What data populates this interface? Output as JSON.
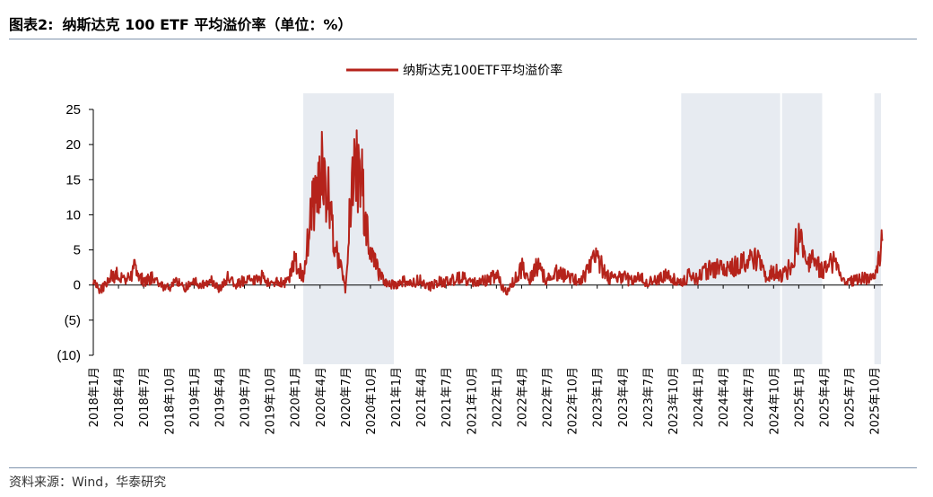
{
  "figure": {
    "label": "图表2:",
    "title": "纳斯达克 100 ETF 平均溢价率（单位：%）",
    "source": "资料来源：Wind，华泰研究"
  },
  "chart_data": {
    "type": "line",
    "title": "纳斯达克 100 ETF 平均溢价率（单位：%）",
    "xlabel": "",
    "ylabel": "",
    "ylim": [
      -10,
      25
    ],
    "xlim": [
      "2018-01",
      "2025-11"
    ],
    "y_ticks": [
      25,
      20,
      15,
      10,
      5,
      0,
      -5,
      -10
    ],
    "y_tick_labels": [
      "25",
      "20",
      "15",
      "10",
      "5",
      "0",
      "(5)",
      "(10)"
    ],
    "x_tick_labels": [
      "2018年1月",
      "2018年4月",
      "2018年7月",
      "2018年10月",
      "2019年1月",
      "2019年4月",
      "2019年7月",
      "2019年10月",
      "2020年1月",
      "2020年4月",
      "2020年7月",
      "2020年10月",
      "2021年1月",
      "2021年4月",
      "2021年7月",
      "2021年10月",
      "2022年1月",
      "2022年4月",
      "2022年7月",
      "2022年10月",
      "2023年1月",
      "2023年4月",
      "2023年7月",
      "2023年10月",
      "2024年1月",
      "2024年4月",
      "2024年7月",
      "2024年10月",
      "2025年1月",
      "2025年4月",
      "2025年7月",
      "2025年10月"
    ],
    "legend": {
      "position": "top",
      "entries": [
        "纳斯达克100ETF平均溢价率"
      ]
    },
    "grid": false,
    "shaded_periods": [
      [
        "2020-02",
        "2021-01"
      ],
      [
        "2023-11",
        "2024-11"
      ],
      [
        "2024-11",
        "2025-04"
      ],
      [
        "2025-10",
        "2025-11"
      ]
    ],
    "series": [
      {
        "name": "纳斯达克100ETF平均溢价率",
        "color": "#b5231b",
        "x": [
          "2018-01",
          "2018-02",
          "2018-03",
          "2018-04",
          "2018-05",
          "2018-06",
          "2018-07",
          "2018-08",
          "2018-09",
          "2018-10",
          "2018-11",
          "2018-12",
          "2019-01",
          "2019-02",
          "2019-03",
          "2019-04",
          "2019-05",
          "2019-06",
          "2019-07",
          "2019-08",
          "2019-09",
          "2019-10",
          "2019-11",
          "2019-12",
          "2020-01",
          "2020-02",
          "2020-03",
          "2020-04",
          "2020-05",
          "2020-06",
          "2020-07",
          "2020-08",
          "2020-09",
          "2020-10",
          "2020-11",
          "2020-12",
          "2021-01",
          "2021-02",
          "2021-03",
          "2021-04",
          "2021-05",
          "2021-06",
          "2021-07",
          "2021-08",
          "2021-09",
          "2021-10",
          "2021-11",
          "2021-12",
          "2022-01",
          "2022-02",
          "2022-03",
          "2022-04",
          "2022-05",
          "2022-06",
          "2022-07",
          "2022-08",
          "2022-09",
          "2022-10",
          "2022-11",
          "2022-12",
          "2023-01",
          "2023-02",
          "2023-03",
          "2023-04",
          "2023-05",
          "2023-06",
          "2023-07",
          "2023-08",
          "2023-09",
          "2023-10",
          "2023-11",
          "2023-12",
          "2024-01",
          "2024-02",
          "2024-03",
          "2024-04",
          "2024-05",
          "2024-06",
          "2024-07",
          "2024-08",
          "2024-09",
          "2024-10",
          "2024-11",
          "2024-12",
          "2025-01",
          "2025-02",
          "2025-03",
          "2025-04",
          "2025-05",
          "2025-06",
          "2025-07",
          "2025-08",
          "2025-09",
          "2025-10",
          "2025-11"
        ],
        "values": [
          0.5,
          -0.8,
          1.2,
          1.5,
          0.8,
          2.5,
          0.5,
          1.0,
          0.0,
          -0.5,
          0.8,
          -0.5,
          0.5,
          0.0,
          0.8,
          -0.5,
          1.0,
          0.0,
          0.8,
          0.5,
          1.2,
          0.0,
          0.5,
          0.3,
          3.5,
          1.0,
          10.0,
          17.0,
          12.0,
          5.0,
          -0.5,
          18.0,
          14.0,
          5.0,
          1.5,
          0.2,
          0.0,
          0.5,
          0.3,
          0.8,
          -0.3,
          0.5,
          0.4,
          0.8,
          1.0,
          0.6,
          0.4,
          0.8,
          1.5,
          -1.0,
          0.5,
          2.5,
          1.0,
          3.0,
          0.5,
          2.0,
          1.5,
          1.0,
          0.5,
          2.5,
          4.0,
          1.5,
          0.8,
          1.2,
          0.6,
          1.0,
          0.5,
          0.8,
          1.5,
          0.8,
          0.5,
          1.5,
          1.0,
          2.0,
          2.5,
          2.0,
          2.5,
          3.0,
          3.5,
          4.0,
          1.0,
          2.0,
          1.5,
          2.5,
          7.5,
          4.0,
          3.0,
          2.0,
          3.5,
          1.0,
          0.5,
          0.8,
          1.0,
          0.8,
          6.5
        ]
      }
    ]
  }
}
